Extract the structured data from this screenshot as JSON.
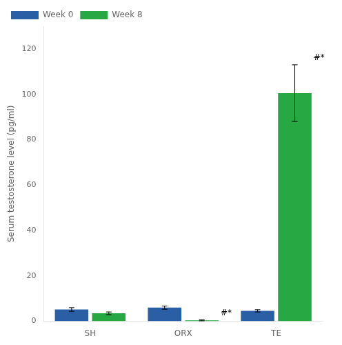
{
  "chart_data": {
    "type": "bar",
    "categories": [
      "SH",
      "ORX",
      "TE"
    ],
    "series": [
      {
        "name": "Week 0",
        "color": "#2b5fa5",
        "values": [
          5.2,
          6.0,
          4.6
        ],
        "errors": [
          0.8,
          0.7,
          0.5
        ]
      },
      {
        "name": "Week 8",
        "color": "#27a843",
        "values": [
          3.5,
          0.4,
          100.5
        ],
        "errors": [
          0.6,
          0.2,
          12.5
        ]
      }
    ],
    "ylabel": "Serum testosterone level (pg/ml)",
    "ylim": [
      0,
      130
    ],
    "yticks": [
      0,
      20,
      40,
      60,
      80,
      100,
      120
    ],
    "grid": false,
    "legend": "upper-left",
    "annotations": [
      {
        "text": "#*",
        "category": "ORX",
        "series": "Week 8"
      },
      {
        "text": "#*",
        "category": "TE",
        "series": "Week 8"
      }
    ]
  }
}
